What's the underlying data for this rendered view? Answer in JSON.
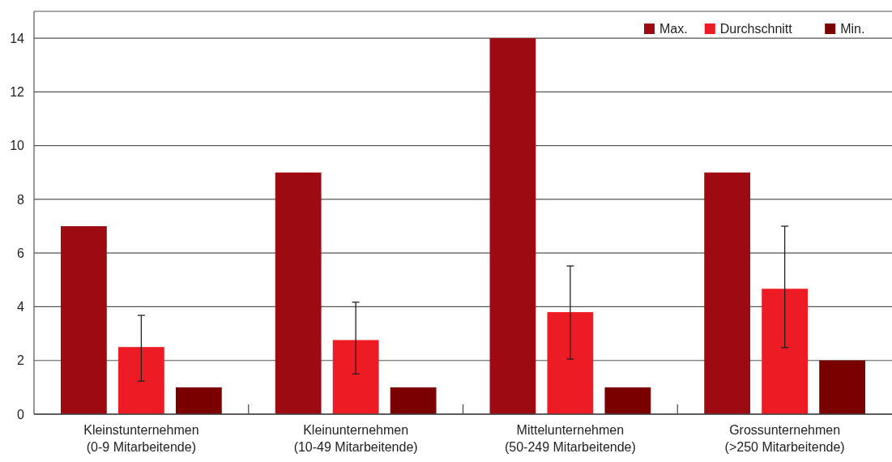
{
  "chart_data": {
    "type": "bar",
    "categories": [
      "Kleinstunternehmen\n(0-9 Mitarbeitende)",
      "Kleinunternehmen\n(10-49 Mitarbeitende)",
      "Mittelunternehmen\n(50-249 Mitarbeitende)",
      "Grossunternehmen\n(>250 Mitarbeitende)"
    ],
    "series": [
      {
        "name": "Max.",
        "color": "#9e0a12",
        "values": [
          7,
          9,
          14,
          9
        ]
      },
      {
        "name": "Durchschnitt",
        "color": "#ed1c24",
        "values": [
          2.5,
          2.76,
          3.8,
          4.67
        ],
        "errors": [
          [
            1.23,
            3.68
          ],
          [
            1.5,
            4.17
          ],
          [
            2.05,
            5.52
          ],
          [
            2.48,
            7.0
          ]
        ]
      },
      {
        "name": "Min.",
        "color": "#7a0000",
        "values": [
          1,
          1,
          1,
          2
        ]
      }
    ],
    "ylim": [
      0,
      15
    ],
    "yticks": [
      0,
      2,
      4,
      6,
      8,
      10,
      12,
      14
    ],
    "grid": "y",
    "legend": "top right"
  }
}
